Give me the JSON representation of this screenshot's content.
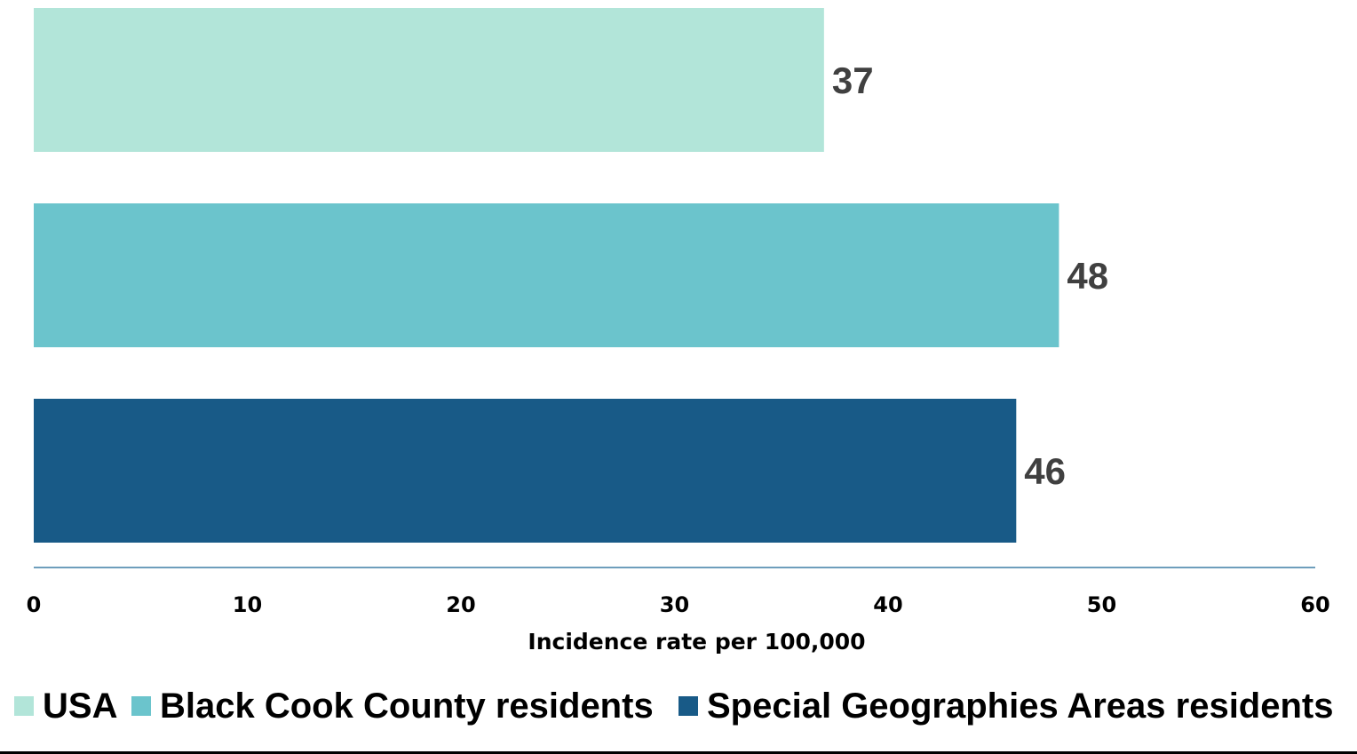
{
  "chart_data": {
    "type": "bar",
    "orientation": "horizontal",
    "categories": [
      "USA",
      "Black Cook County residents",
      "Special Geographies Areas residents"
    ],
    "values": [
      37,
      48,
      46
    ],
    "data_labels": [
      "37",
      "48",
      "46"
    ],
    "colors": [
      "#b2e5d9",
      "#6bc4cc",
      "#185a87"
    ],
    "xlabel": "Incidence rate per 100,000",
    "ylabel": "",
    "xlim": [
      0,
      60
    ],
    "x_ticks": [
      0,
      10,
      20,
      30,
      40,
      50,
      60
    ],
    "tick_labels": [
      "0",
      "10",
      "20",
      "30",
      "40",
      "50",
      "60"
    ],
    "grid": false,
    "legend": {
      "position": "bottom",
      "entries": [
        "USA",
        "Black Cook County residents",
        "Special Geographies Areas residents"
      ]
    },
    "axis_color": "#3e7fa6"
  }
}
